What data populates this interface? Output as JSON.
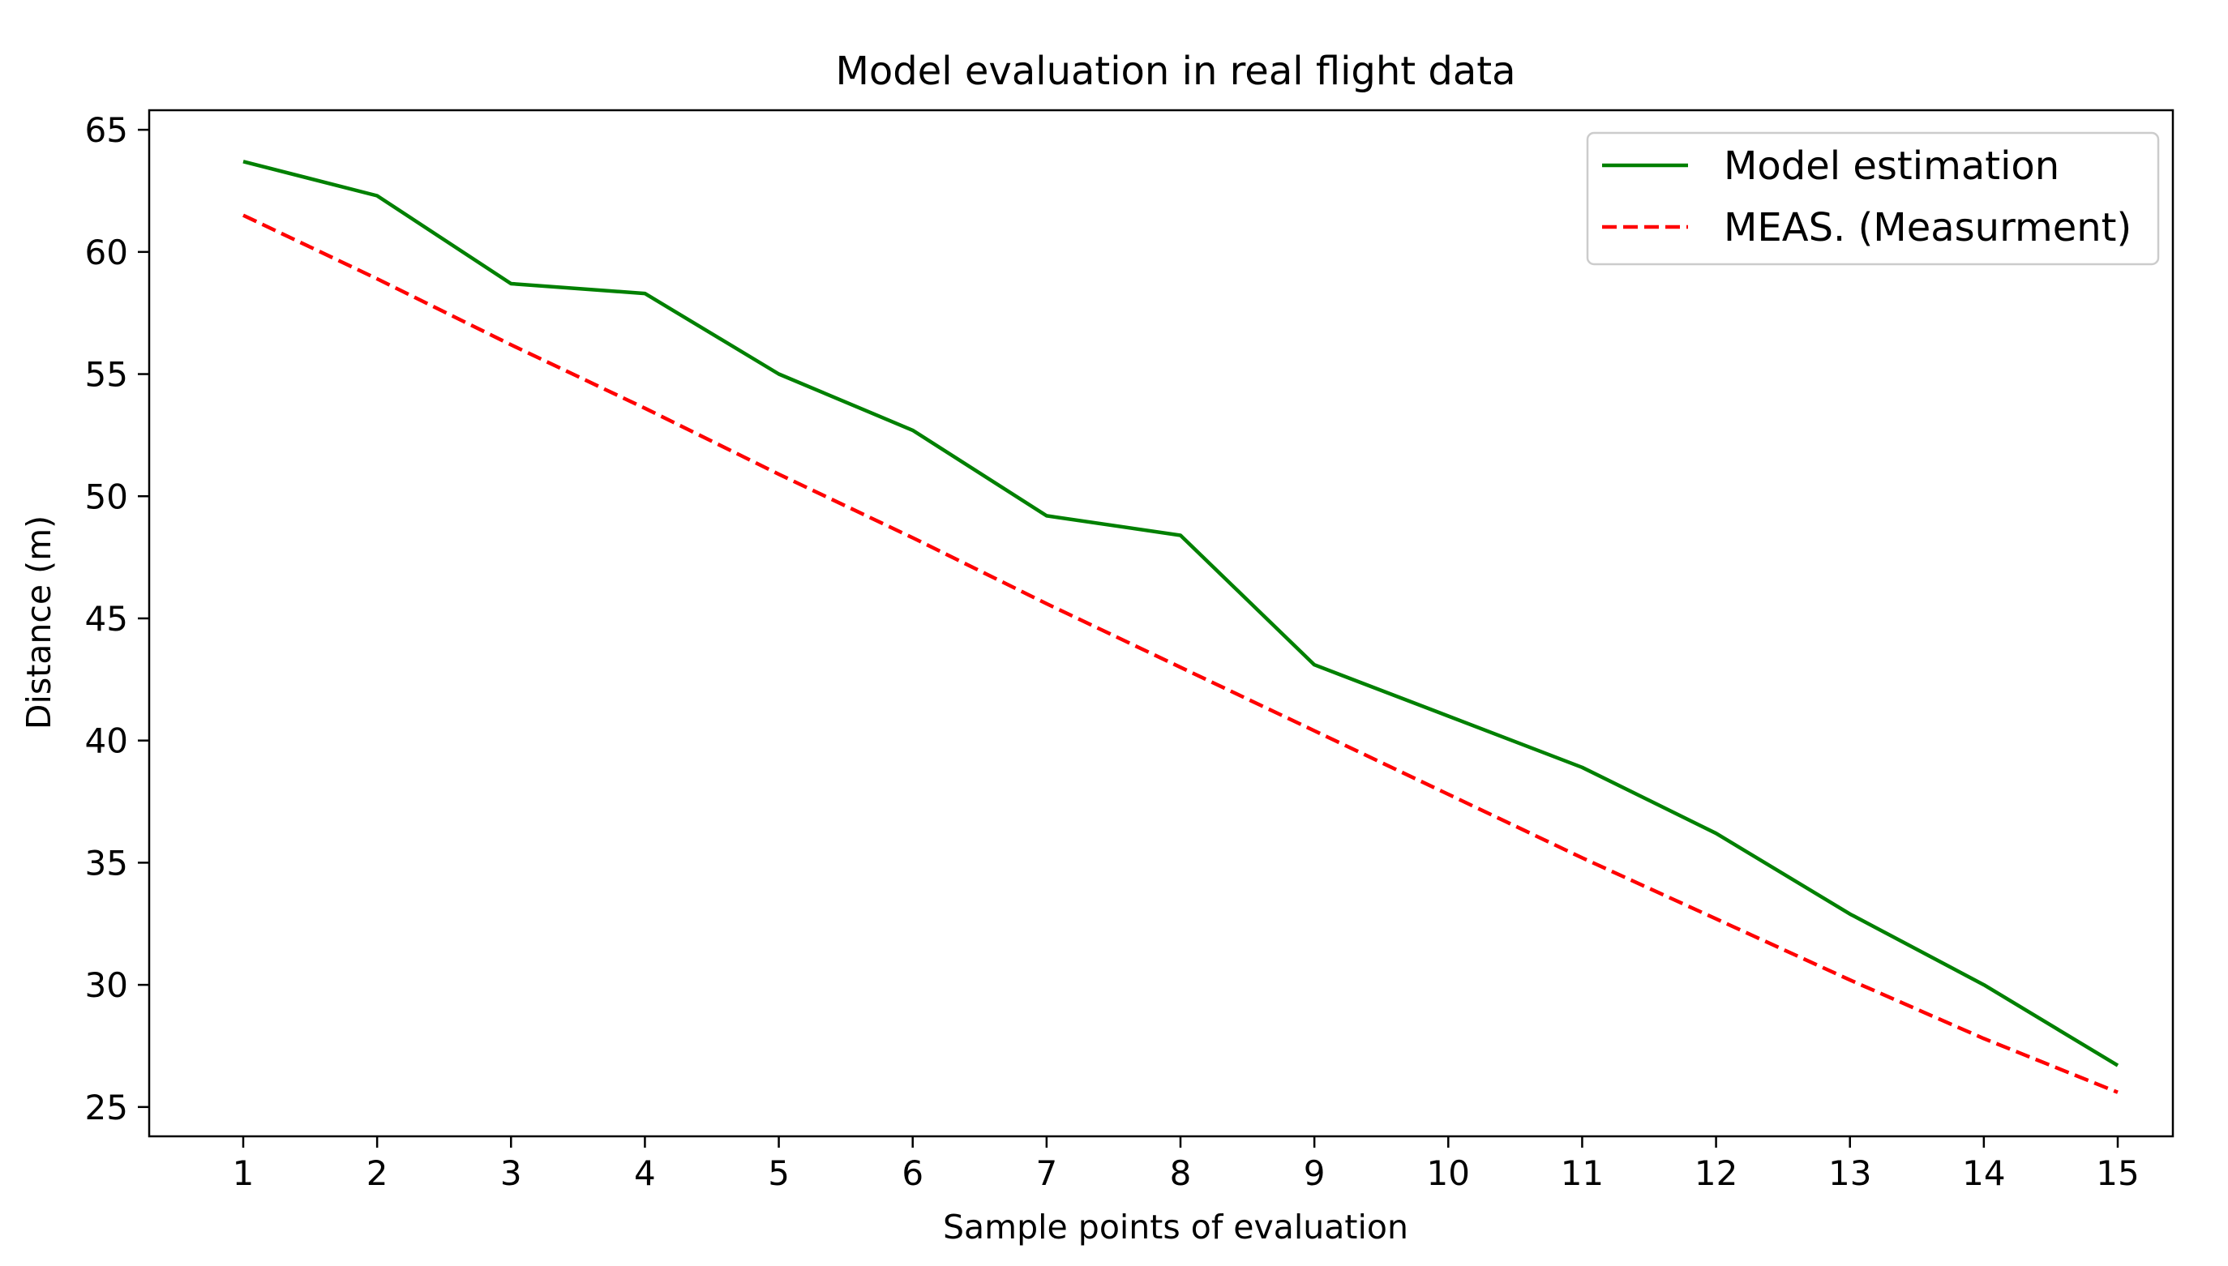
{
  "chart_data": {
    "type": "line",
    "title": "Model evaluation in real flight data",
    "xlabel": "Sample points of evaluation",
    "ylabel": "Distance (m)",
    "categories": [
      "1",
      "2",
      "3",
      "4",
      "5",
      "6",
      "7",
      "8",
      "9",
      "10",
      "11",
      "12",
      "13",
      "14",
      "15"
    ],
    "ylim": [
      23.8,
      65.8
    ],
    "yticks": [
      25,
      30,
      35,
      40,
      45,
      50,
      55,
      60,
      65
    ],
    "grid": false,
    "legend_position": "top-right",
    "series": [
      {
        "name": "Model estimation",
        "color": "#008000",
        "style": "solid",
        "values": [
          63.7,
          62.3,
          58.7,
          58.3,
          55.0,
          52.7,
          49.2,
          48.4,
          43.1,
          41.0,
          38.9,
          36.2,
          32.9,
          30.0,
          26.7
        ]
      },
      {
        "name": "MEAS. (Measurment)",
        "color": "#ff0000",
        "style": "dashed",
        "values": [
          61.5,
          58.9,
          56.2,
          53.6,
          50.9,
          48.3,
          45.6,
          43.0,
          40.4,
          37.8,
          35.2,
          32.7,
          30.2,
          27.8,
          25.6
        ]
      }
    ]
  }
}
